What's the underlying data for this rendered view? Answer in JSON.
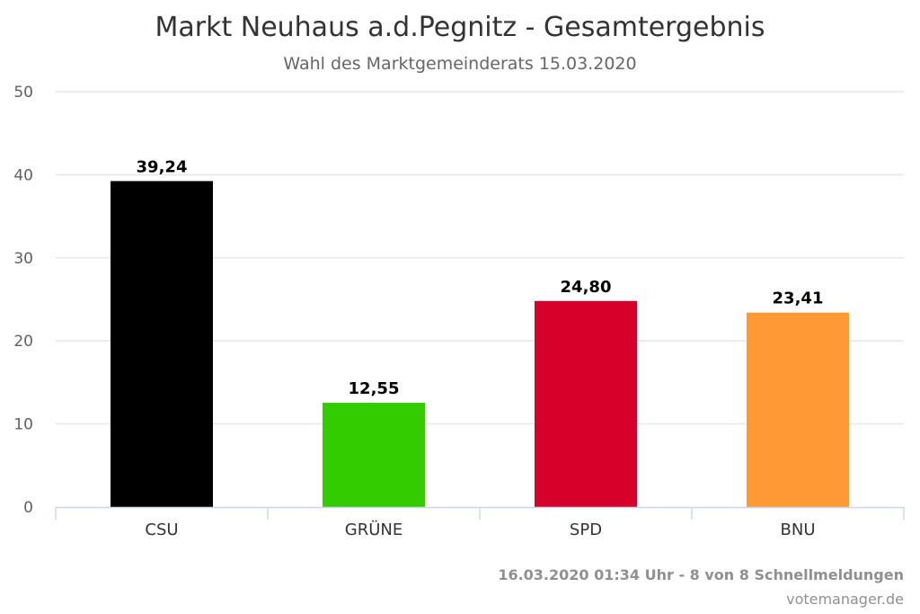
{
  "chart_data": {
    "type": "bar",
    "title": "Markt Neuhaus a.d.Pegnitz - Gesamtergebnis",
    "subtitle": "Wahl des Marktgemeinderats 15.03.2020",
    "categories": [
      "CSU",
      "GRÜNE",
      "SPD",
      "BNU"
    ],
    "values": [
      39.24,
      12.55,
      24.8,
      23.41
    ],
    "value_labels": [
      "39,24",
      "12,55",
      "24,80",
      "23,41"
    ],
    "colors": [
      "#000000",
      "#33cc00",
      "#d7002a",
      "#ff9933"
    ],
    "ylim": [
      0,
      50
    ],
    "yticks": [
      0,
      10,
      20,
      30,
      40,
      50
    ],
    "grid": true,
    "legend": "none"
  },
  "footer": {
    "timestamp": "16.03.2020 01:34 Uhr - 8 von 8 Schnellmeldungen",
    "source": "votemanager.de"
  }
}
